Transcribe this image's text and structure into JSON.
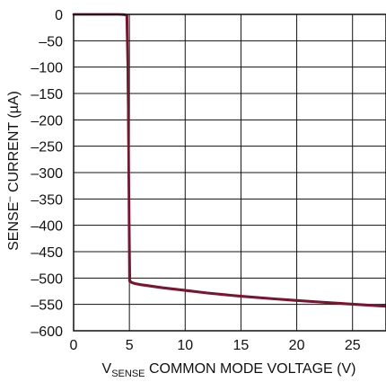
{
  "chart_data": {
    "type": "line",
    "xlabel": {
      "prefix": "V",
      "subscript": "SENSE",
      "text": " COMMON MODE VOLTAGE (V)"
    },
    "ylabel": {
      "base": "SENSE",
      "superscript": "–",
      "text": " CURRENT (µA)"
    },
    "xlim": [
      0,
      28
    ],
    "ylim": [
      -600,
      0
    ],
    "x_ticks": [
      0,
      5,
      10,
      15,
      20,
      25
    ],
    "x_tick_labels": [
      "0",
      "5",
      "10",
      "15",
      "20",
      "25"
    ],
    "y_ticks": [
      0,
      -50,
      -100,
      -150,
      -200,
      -250,
      -300,
      -350,
      -400,
      -450,
      -500,
      -550,
      -600
    ],
    "y_tick_labels": [
      "0",
      "–50",
      "–100",
      "–150",
      "–200",
      "–250",
      "–300",
      "–350",
      "–400",
      "–450",
      "–500",
      "–550",
      "–600"
    ],
    "grid": true,
    "colors": {
      "line": "#7a1530",
      "grid": "#111111",
      "axis": "#111111"
    },
    "series": [
      {
        "x": [
          0,
          1,
          2,
          3,
          4,
          4.6,
          4.75,
          4.85,
          4.95,
          5.05,
          5.2,
          5.5,
          6,
          7,
          8,
          10,
          12,
          15,
          18,
          20,
          22,
          25,
          28
        ],
        "y": [
          0,
          0,
          0,
          0,
          0,
          -1,
          -2,
          -100,
          -300,
          -505,
          -508,
          -510,
          -512,
          -515,
          -518,
          -523,
          -528,
          -534,
          -539,
          -542,
          -545,
          -549,
          -553
        ]
      },
      {
        "x": [
          0,
          1,
          2,
          3,
          4,
          4.5,
          4.7,
          4.8,
          4.9,
          5.0,
          5.2,
          5.5,
          6,
          7,
          8,
          10,
          12,
          15,
          18,
          20,
          22,
          25,
          28
        ],
        "y": [
          0,
          0,
          0,
          0,
          0,
          0,
          -1,
          -2,
          -200,
          -506,
          -509,
          -511,
          -513,
          -516,
          -519,
          -524,
          -529,
          -535,
          -540,
          -543,
          -546,
          -550,
          -554
        ]
      }
    ]
  }
}
